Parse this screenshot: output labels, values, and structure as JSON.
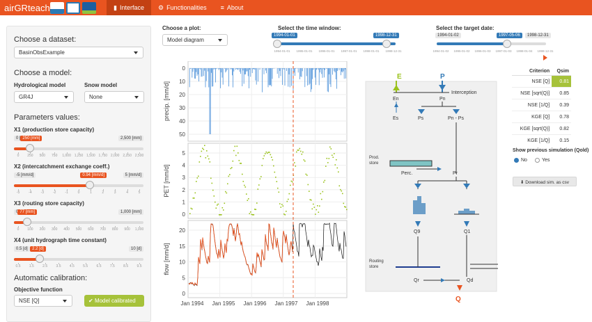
{
  "app": {
    "brand": "airGRteaching"
  },
  "nav": [
    {
      "label": "Interface",
      "icon": "bar-chart-icon",
      "active": true
    },
    {
      "label": "Functionalities",
      "icon": "gear-icon",
      "active": false
    },
    {
      "label": "About",
      "icon": "menu-icon",
      "active": false
    }
  ],
  "sidebar": {
    "dataset_title": "Choose a dataset:",
    "dataset_value": "BasinObsExample",
    "model_title": "Choose a model:",
    "hydro_label": "Hydrological model",
    "hydro_value": "GR4J",
    "snow_label": "Snow model",
    "snow_value": "None",
    "params_title": "Parameters values:",
    "params": [
      {
        "label": "X1 (production store capacity)",
        "min": "0 [mm]",
        "max": "2,500 [mm]",
        "value": "250 [mm]",
        "fraction": 0.1,
        "ticks": [
          "0",
          "250",
          "500",
          "750",
          "1,000",
          "1,250",
          "1,500",
          "1,750",
          "2,000",
          "2,250",
          "2,500"
        ]
      },
      {
        "label": "X2 (intercatchment exchange coeff.)",
        "min": "-5 [mm/d]",
        "max": "5 [mm/d]",
        "value": "0.94 [mm/d]",
        "fraction": 0.594,
        "ticks": [
          "-5",
          "-4",
          "-3",
          "-2",
          "-1",
          "0",
          "1",
          "2",
          "3",
          "4",
          "5"
        ]
      },
      {
        "label": "X3 (routing store capacity)",
        "min": "0 [mm]",
        "max": "1,000 [mm]",
        "value": "77 [mm]",
        "fraction": 0.077,
        "ticks": [
          "0",
          "100",
          "200",
          "300",
          "400",
          "500",
          "600",
          "700",
          "800",
          "900",
          "1,000"
        ]
      },
      {
        "label": "X4 (unit hydrograph time constant)",
        "min": "0.5 [d]",
        "max": "10 [d]",
        "value": "2.2 [d]",
        "fraction": 0.179,
        "ticks": [
          "0.5",
          "1.5",
          "2.5",
          "3.5",
          "4.5",
          "5.5",
          "6.5",
          "7.5",
          "8.5",
          "9.5"
        ]
      }
    ],
    "autocal_title": "Automatic calibration:",
    "objfun_label": "Objective function",
    "objfun_value": "NSE [Q]",
    "calib_button": "Model calibrated"
  },
  "plot_select": {
    "label": "Choose a plot:",
    "value": "Model diagram"
  },
  "time_window": {
    "label": "Select the time window:",
    "start": "1994-01-01",
    "end": "1998-12-31",
    "ticks": [
      "1994-01-01",
      "1995-01-01",
      "1996-01-01",
      "1997-01-01",
      "1998-01-01",
      "1998-12-31"
    ]
  },
  "target_date": {
    "label": "Select the target date:",
    "min": "1994-01-02",
    "max": "1998-12-31",
    "value": "1997-05-06",
    "ticks": [
      "1994-01-02",
      "1995-01-02",
      "1996-01-03",
      "1997-01-03",
      "1998-01-04",
      "1998-12-31"
    ]
  },
  "chart": {
    "precip": {
      "ylabel": "precip. [mm/d]",
      "ticks": [
        "0",
        "10",
        "20",
        "30",
        "40",
        "50"
      ]
    },
    "pet": {
      "ylabel": "PET [mm/d]",
      "ticks": [
        "0",
        "1",
        "2",
        "3",
        "4",
        "5"
      ]
    },
    "flow": {
      "ylabel": "flow [mm/d]",
      "ticks": [
        "0",
        "5",
        "10",
        "15",
        "20"
      ]
    },
    "xticks": [
      "Jan 1994",
      "Jan 1995",
      "Jan 1996",
      "Jan 1997",
      "Jan 1998"
    ]
  },
  "diagram": {
    "E": "E",
    "P": "P",
    "interception": "Interception",
    "En": "En",
    "Pn": "Pn",
    "Es": "Es",
    "Ps": "Ps",
    "PnPs": "Pn - Ps",
    "prod_store": "Prod.\nstore",
    "perc": "Perc.",
    "Pr": "Pr",
    "Q9": "Q9",
    "Q1": "Q1",
    "routing_store": "Routing\nstore",
    "Qr": "Qr",
    "Qd": "Qd",
    "Q": "Q"
  },
  "criteria": {
    "col1": "Criterion",
    "col2": "Qsim",
    "rows": [
      {
        "name": "NSE [Q]",
        "value": "0.81",
        "highlight": true
      },
      {
        "name": "NSE [sqrt(Q)]",
        "value": "0.85"
      },
      {
        "name": "NSE [1/Q]",
        "value": "0.39"
      },
      {
        "name": "KGE [Q]",
        "value": "0.78"
      },
      {
        "name": "KGE [sqrt(Q)]",
        "value": "0.82"
      },
      {
        "name": "KGE [1/Q]",
        "value": "0.15"
      }
    ]
  },
  "prev_sim": {
    "label": "Show previous simulation (Qold)",
    "no": "No",
    "yes": "Yes"
  },
  "download_button": "Download sim. as csv",
  "colors": {
    "accent": "#e95420",
    "green": "#a6c23a",
    "blue": "#337ab7",
    "pet": "#9ac21b",
    "precip": "#4a90d9"
  }
}
